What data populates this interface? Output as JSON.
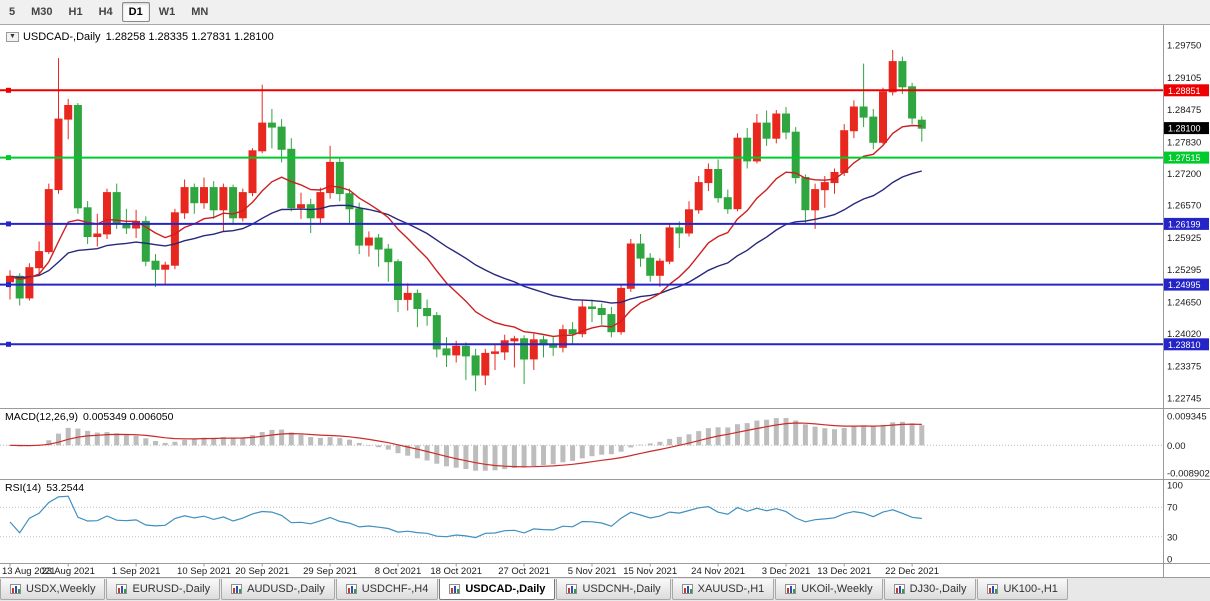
{
  "toolbar": {
    "timeframes": [
      {
        "label": "5",
        "active": false
      },
      {
        "label": "M30",
        "active": false
      },
      {
        "label": "H1",
        "active": false
      },
      {
        "label": "H4",
        "active": false
      },
      {
        "label": "D1",
        "active": true
      },
      {
        "label": "W1",
        "active": false
      },
      {
        "label": "MN",
        "active": false
      }
    ]
  },
  "chart": {
    "dropdown_icon": "▼",
    "title_symbol": "USDCAD-,Daily",
    "title_ohlc": "1.28258 1.28335 1.27831 1.28100"
  },
  "macd": {
    "name": "MACD(12,26,9)",
    "values_text": "0.005349 0.006050",
    "fast": 12,
    "slow": 26,
    "signal": 9,
    "axis_labels": [
      "0.009345",
      "0.00",
      "-0.008902"
    ]
  },
  "rsi": {
    "name": "RSI(14)",
    "value_text": "53.2544",
    "period": 14,
    "axis_labels": [
      "100",
      "70",
      "30",
      "0"
    ],
    "levels": [
      70,
      30
    ]
  },
  "tabs": [
    {
      "label": "USDX,Weekly",
      "active": false
    },
    {
      "label": "EURUSD-,Daily",
      "active": false
    },
    {
      "label": "AUDUSD-,Daily",
      "active": false
    },
    {
      "label": "USDCHF-,H4",
      "active": false
    },
    {
      "label": "USDCAD-,Daily",
      "active": true
    },
    {
      "label": "USDCNH-,Daily",
      "active": false
    },
    {
      "label": "XAUUSD-,H1",
      "active": false
    },
    {
      "label": "UKOil-,Weekly",
      "active": false
    },
    {
      "label": "DJ30-,Daily",
      "active": false
    },
    {
      "label": "UK100-,H1",
      "active": false
    }
  ],
  "chart_data": {
    "type": "candlestick",
    "symbol": "USDCAD-",
    "timeframe": "Daily",
    "last_ohlc": {
      "open": 1.28258,
      "high": 1.28335,
      "low": 1.27831,
      "close": 1.281
    },
    "price_axis_labels": [
      "1.29750",
      "1.29105",
      "1.28475",
      "1.27830",
      "1.27200",
      "1.26570",
      "1.25925",
      "1.25295",
      "1.24650",
      "1.24020",
      "1.23375",
      "1.22745"
    ],
    "y_range": [
      1.225,
      1.3015
    ],
    "hlines": [
      {
        "label": "1.28851",
        "value": 1.28851,
        "color": "#ee0000"
      },
      {
        "label": "1.27515",
        "value": 1.27515,
        "color": "#00ca2c"
      },
      {
        "label": "1.26199",
        "value": 1.26199,
        "color": "#2424c8"
      },
      {
        "label": "1.24995",
        "value": 1.24995,
        "color": "#2424c8"
      },
      {
        "label": "1.23810",
        "value": 1.2381,
        "color": "#2424c8"
      }
    ],
    "current_price": {
      "label": "1.28100",
      "value": 1.281,
      "box_color": "#000000"
    },
    "date_labels": [
      {
        "label": "13 Aug 2021",
        "index": 0
      },
      {
        "label": "23 Aug 2021",
        "index": 6
      },
      {
        "label": "1 Sep 2021",
        "index": 13
      },
      {
        "label": "10 Sep 2021",
        "index": 20
      },
      {
        "label": "20 Sep 2021",
        "index": 26
      },
      {
        "label": "29 Sep 2021",
        "index": 33
      },
      {
        "label": "8 Oct 2021",
        "index": 40
      },
      {
        "label": "18 Oct 2021",
        "index": 46
      },
      {
        "label": "27 Oct 2021",
        "index": 53
      },
      {
        "label": "5 Nov 2021",
        "index": 60
      },
      {
        "label": "15 Nov 2021",
        "index": 66
      },
      {
        "label": "24 Nov 2021",
        "index": 73
      },
      {
        "label": "3 Dec 2021",
        "index": 80
      },
      {
        "label": "13 Dec 2021",
        "index": 86
      },
      {
        "label": "22 Dec 2021",
        "index": 93
      }
    ],
    "colors": {
      "up": "#e8281e",
      "down": "#2fa63f",
      "ma_fast": "#cc2020",
      "ma_slow": "#28287a",
      "macd_hist": "#bdbdbd",
      "macd_signal": "#cc2a2a",
      "rsi_line": "#3f8fc0",
      "axis_line": "#9a9a9a",
      "grid_dots": "#c0c0c0"
    },
    "ohlc": [
      [
        1.2505,
        1.2528,
        1.247,
        1.2516
      ],
      [
        1.2516,
        1.2522,
        1.2458,
        1.2473
      ],
      [
        1.2473,
        1.2542,
        1.2468,
        1.2533
      ],
      [
        1.2533,
        1.2585,
        1.252,
        1.2565
      ],
      [
        1.2565,
        1.27,
        1.256,
        1.2688
      ],
      [
        1.2688,
        1.2949,
        1.268,
        1.2828
      ],
      [
        1.2828,
        1.2868,
        1.2788,
        1.2855
      ],
      [
        1.2855,
        1.286,
        1.264,
        1.2652
      ],
      [
        1.2652,
        1.2665,
        1.258,
        1.2595
      ],
      [
        1.2595,
        1.264,
        1.2575,
        1.26
      ],
      [
        1.26,
        1.269,
        1.259,
        1.2682
      ],
      [
        1.2682,
        1.27,
        1.261,
        1.262
      ],
      [
        1.262,
        1.265,
        1.26,
        1.2612
      ],
      [
        1.2612,
        1.2648,
        1.2592,
        1.2625
      ],
      [
        1.2625,
        1.2635,
        1.2536,
        1.2546
      ],
      [
        1.2546,
        1.256,
        1.2495,
        1.253
      ],
      [
        1.253,
        1.2545,
        1.25,
        1.2538
      ],
      [
        1.2538,
        1.265,
        1.253,
        1.2642
      ],
      [
        1.2642,
        1.2708,
        1.263,
        1.2692
      ],
      [
        1.2692,
        1.27,
        1.264,
        1.2662
      ],
      [
        1.2662,
        1.2712,
        1.265,
        1.2692
      ],
      [
        1.2692,
        1.2705,
        1.263,
        1.2648
      ],
      [
        1.2648,
        1.27,
        1.2605,
        1.2692
      ],
      [
        1.2692,
        1.2698,
        1.2618,
        1.2632
      ],
      [
        1.2632,
        1.269,
        1.2625,
        1.2682
      ],
      [
        1.2682,
        1.277,
        1.2675,
        1.2765
      ],
      [
        1.2765,
        1.2896,
        1.276,
        1.282
      ],
      [
        1.282,
        1.2848,
        1.277,
        1.2812
      ],
      [
        1.2812,
        1.2828,
        1.2742,
        1.2768
      ],
      [
        1.2768,
        1.279,
        1.2645,
        1.2652
      ],
      [
        1.2652,
        1.2682,
        1.263,
        1.2658
      ],
      [
        1.2658,
        1.267,
        1.2602,
        1.2632
      ],
      [
        1.2632,
        1.2692,
        1.262,
        1.2682
      ],
      [
        1.2682,
        1.2775,
        1.267,
        1.2742
      ],
      [
        1.2742,
        1.275,
        1.2665,
        1.268
      ],
      [
        1.268,
        1.269,
        1.262,
        1.265
      ],
      [
        1.265,
        1.2662,
        1.256,
        1.2578
      ],
      [
        1.2578,
        1.2605,
        1.2555,
        1.2592
      ],
      [
        1.2592,
        1.26,
        1.2535,
        1.257
      ],
      [
        1.257,
        1.258,
        1.2505,
        1.2545
      ],
      [
        1.2545,
        1.255,
        1.2445,
        1.247
      ],
      [
        1.247,
        1.2502,
        1.2448,
        1.2482
      ],
      [
        1.2482,
        1.249,
        1.2415,
        1.2452
      ],
      [
        1.2452,
        1.247,
        1.2418,
        1.2438
      ],
      [
        1.2438,
        1.2445,
        1.2355,
        1.2372
      ],
      [
        1.2372,
        1.2395,
        1.2336,
        1.236
      ],
      [
        1.236,
        1.2388,
        1.2345,
        1.2377
      ],
      [
        1.2377,
        1.2385,
        1.231,
        1.2358
      ],
      [
        1.2358,
        1.2372,
        1.2288,
        1.232
      ],
      [
        1.232,
        1.2372,
        1.23,
        1.2363
      ],
      [
        1.2363,
        1.238,
        1.233,
        1.2366
      ],
      [
        1.2366,
        1.24,
        1.235,
        1.2388
      ],
      [
        1.2388,
        1.2398,
        1.2335,
        1.2392
      ],
      [
        1.2392,
        1.2399,
        1.2302,
        1.2352
      ],
      [
        1.2352,
        1.2402,
        1.233,
        1.239
      ],
      [
        1.239,
        1.2398,
        1.2355,
        1.238
      ],
      [
        1.238,
        1.2398,
        1.2358,
        1.2375
      ],
      [
        1.2375,
        1.242,
        1.2365,
        1.241
      ],
      [
        1.241,
        1.2425,
        1.238,
        1.2402
      ],
      [
        1.2402,
        1.2468,
        1.2395,
        1.2455
      ],
      [
        1.2455,
        1.247,
        1.2425,
        1.2452
      ],
      [
        1.2452,
        1.2462,
        1.242,
        1.244
      ],
      [
        1.244,
        1.2455,
        1.2395,
        1.2406
      ],
      [
        1.2406,
        1.25,
        1.24,
        1.2492
      ],
      [
        1.2492,
        1.259,
        1.2485,
        1.258
      ],
      [
        1.258,
        1.26,
        1.2535,
        1.2552
      ],
      [
        1.2552,
        1.2562,
        1.2505,
        1.2518
      ],
      [
        1.2518,
        1.2552,
        1.2495,
        1.2546
      ],
      [
        1.2546,
        1.262,
        1.254,
        1.2612
      ],
      [
        1.2612,
        1.2625,
        1.2572,
        1.2602
      ],
      [
        1.2602,
        1.2665,
        1.2595,
        1.2648
      ],
      [
        1.2648,
        1.2715,
        1.264,
        1.2702
      ],
      [
        1.2702,
        1.274,
        1.2685,
        1.2728
      ],
      [
        1.2728,
        1.2748,
        1.2662,
        1.2672
      ],
      [
        1.2672,
        1.2688,
        1.264,
        1.265
      ],
      [
        1.265,
        1.28,
        1.2645,
        1.279
      ],
      [
        1.279,
        1.281,
        1.273,
        1.2745
      ],
      [
        1.2745,
        1.2838,
        1.274,
        1.282
      ],
      [
        1.282,
        1.2845,
        1.2775,
        1.279
      ],
      [
        1.279,
        1.2846,
        1.278,
        1.2838
      ],
      [
        1.2838,
        1.2852,
        1.2788,
        1.2802
      ],
      [
        1.2802,
        1.2812,
        1.27,
        1.2712
      ],
      [
        1.2712,
        1.2718,
        1.262,
        1.2648
      ],
      [
        1.2648,
        1.27,
        1.261,
        1.2688
      ],
      [
        1.2688,
        1.2715,
        1.2652,
        1.2702
      ],
      [
        1.2702,
        1.273,
        1.268,
        1.2722
      ],
      [
        1.2722,
        1.2818,
        1.2715,
        1.2805
      ],
      [
        1.2805,
        1.2865,
        1.279,
        1.2852
      ],
      [
        1.2852,
        1.2938,
        1.2812,
        1.2832
      ],
      [
        1.2832,
        1.2848,
        1.2768,
        1.2782
      ],
      [
        1.2782,
        1.289,
        1.2778,
        1.2882
      ],
      [
        1.2882,
        1.2965,
        1.2875,
        1.2942
      ],
      [
        1.2942,
        1.2952,
        1.2878,
        1.2892
      ],
      [
        1.2892,
        1.29,
        1.2818,
        1.283
      ],
      [
        1.28258,
        1.28335,
        1.27831,
        1.281
      ]
    ]
  }
}
